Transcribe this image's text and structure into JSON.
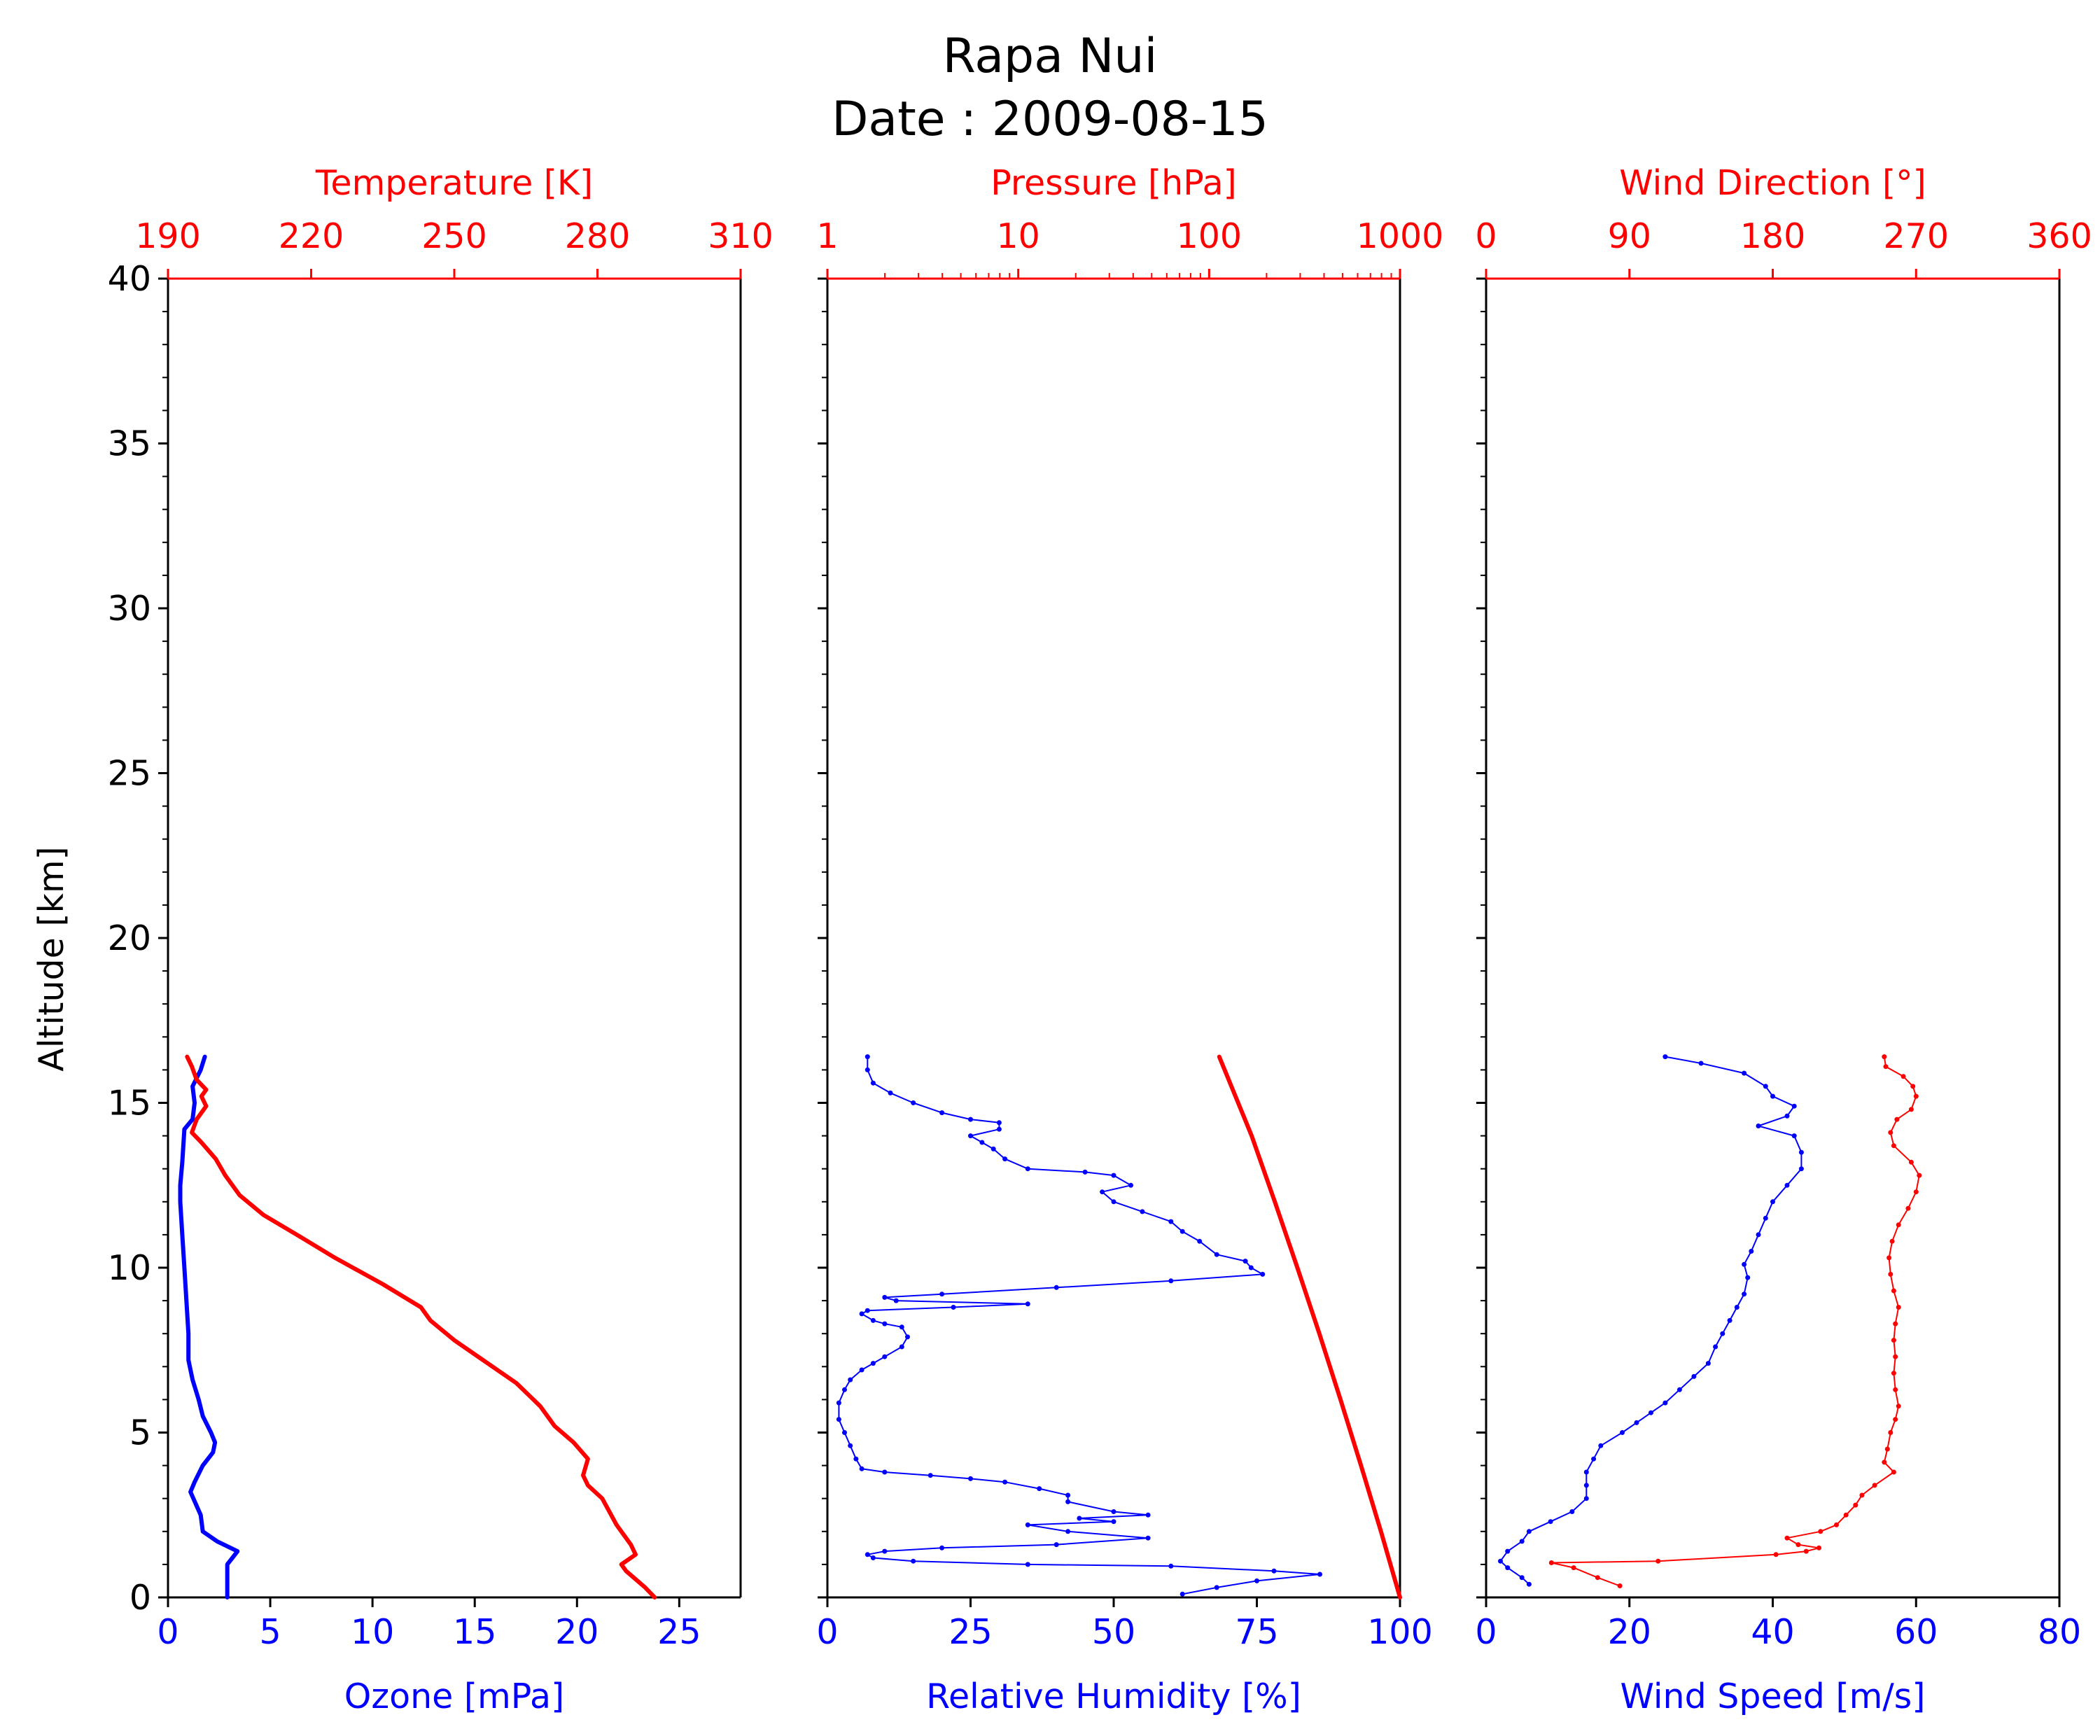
{
  "title_line1": "Rapa Nui",
  "title_line2": "Date : 2009-08-15",
  "colors": {
    "primary": "#0000ff",
    "secondary": "#ff0000",
    "axis": "#000000"
  },
  "y_axis": {
    "label": "Altitude [km]",
    "range": [
      0,
      40
    ],
    "ticks": [
      0,
      5,
      10,
      15,
      20,
      25,
      30,
      35,
      40
    ]
  },
  "chart_data": [
    {
      "type": "line",
      "panel": "Ozone / Temperature",
      "xlabel_bottom": "Ozone [mPa]",
      "xlabel_top": "Temperature [K]",
      "xlim_bottom": [
        0,
        28
      ],
      "xticks_bottom": [
        0,
        5,
        10,
        15,
        20,
        25
      ],
      "xlim_top": [
        190,
        310
      ],
      "xticks_top": [
        190,
        220,
        250,
        280,
        310
      ],
      "series": [
        {
          "axis": "bottom",
          "color": "#0000ff",
          "markers": false,
          "points": [
            [
              2.9,
              0
            ],
            [
              2.9,
              0.5
            ],
            [
              2.9,
              1.0
            ],
            [
              3.4,
              1.4
            ],
            [
              2.4,
              1.7
            ],
            [
              1.7,
              2.0
            ],
            [
              1.6,
              2.5
            ],
            [
              1.1,
              3.2
            ],
            [
              1.3,
              3.5
            ],
            [
              1.7,
              4.0
            ],
            [
              2.2,
              4.4
            ],
            [
              2.3,
              4.7
            ],
            [
              2.1,
              5.0
            ],
            [
              1.7,
              5.5
            ],
            [
              1.5,
              6.0
            ],
            [
              1.2,
              6.6
            ],
            [
              1.0,
              7.2
            ],
            [
              1.0,
              8.0
            ],
            [
              0.9,
              9.0
            ],
            [
              0.8,
              10.0
            ],
            [
              0.7,
              11.0
            ],
            [
              0.6,
              12.0
            ],
            [
              0.6,
              12.5
            ],
            [
              0.7,
              13.2
            ],
            [
              0.8,
              14.2
            ],
            [
              1.2,
              14.5
            ],
            [
              1.3,
              15.0
            ],
            [
              1.2,
              15.5
            ],
            [
              1.6,
              16.0
            ],
            [
              1.8,
              16.4
            ]
          ]
        },
        {
          "axis": "top",
          "color": "#ff0000",
          "markers": false,
          "points": [
            [
              292,
              0
            ],
            [
              290,
              0.3
            ],
            [
              286,
              0.8
            ],
            [
              285,
              1.0
            ],
            [
              288,
              1.3
            ],
            [
              287,
              1.6
            ],
            [
              284,
              2.2
            ],
            [
              281,
              3.0
            ],
            [
              278,
              3.4
            ],
            [
              277,
              3.7
            ],
            [
              278,
              4.2
            ],
            [
              275,
              4.7
            ],
            [
              271,
              5.2
            ],
            [
              268,
              5.8
            ],
            [
              263,
              6.5
            ],
            [
              256,
              7.2
            ],
            [
              250,
              7.8
            ],
            [
              245,
              8.4
            ],
            [
              243,
              8.8
            ],
            [
              235,
              9.5
            ],
            [
              225,
              10.3
            ],
            [
              217,
              11.0
            ],
            [
              210,
              11.6
            ],
            [
              205,
              12.2
            ],
            [
              202,
              12.8
            ],
            [
              200,
              13.3
            ],
            [
              197,
              13.8
            ],
            [
              195,
              14.1
            ],
            [
              196,
              14.5
            ],
            [
              198,
              14.9
            ],
            [
              197,
              15.2
            ],
            [
              198,
              15.4
            ],
            [
              196,
              15.7
            ],
            [
              195,
              16.1
            ],
            [
              194,
              16.4
            ]
          ]
        }
      ]
    },
    {
      "type": "line",
      "panel": "Relative Humidity / Pressure",
      "xlabel_bottom": "Relative Humidity [%]",
      "xlabel_top": "Pressure [hPa]",
      "xlim_bottom": [
        0,
        100
      ],
      "xticks_bottom": [
        0,
        25,
        50,
        75,
        100
      ],
      "xlim_top": [
        1,
        1000
      ],
      "xscale_top": "log",
      "xticks_top": [
        1,
        10,
        100,
        1000
      ],
      "series": [
        {
          "axis": "bottom",
          "color": "#0000ff",
          "markers": true,
          "points": [
            [
              62,
              0.1
            ],
            [
              68,
              0.3
            ],
            [
              75,
              0.5
            ],
            [
              86,
              0.7
            ],
            [
              78,
              0.8
            ],
            [
              60,
              0.95
            ],
            [
              35,
              1.0
            ],
            [
              15,
              1.1
            ],
            [
              8,
              1.2
            ],
            [
              7,
              1.3
            ],
            [
              10,
              1.4
            ],
            [
              20,
              1.5
            ],
            [
              40,
              1.6
            ],
            [
              56,
              1.8
            ],
            [
              42,
              2.0
            ],
            [
              35,
              2.2
            ],
            [
              50,
              2.3
            ],
            [
              44,
              2.4
            ],
            [
              56,
              2.5
            ],
            [
              50,
              2.6
            ],
            [
              42,
              2.9
            ],
            [
              42,
              3.1
            ],
            [
              37,
              3.3
            ],
            [
              31,
              3.5
            ],
            [
              25,
              3.6
            ],
            [
              18,
              3.7
            ],
            [
              10,
              3.8
            ],
            [
              6,
              3.9
            ],
            [
              5,
              4.2
            ],
            [
              4,
              4.6
            ],
            [
              3,
              5.0
            ],
            [
              2,
              5.4
            ],
            [
              2,
              5.9
            ],
            [
              3,
              6.3
            ],
            [
              4,
              6.6
            ],
            [
              6,
              6.9
            ],
            [
              8,
              7.1
            ],
            [
              10,
              7.3
            ],
            [
              13,
              7.6
            ],
            [
              14,
              7.9
            ],
            [
              13,
              8.2
            ],
            [
              10,
              8.3
            ],
            [
              8,
              8.4
            ],
            [
              6,
              8.6
            ],
            [
              7,
              8.7
            ],
            [
              22,
              8.8
            ],
            [
              35,
              8.9
            ],
            [
              12,
              9.0
            ],
            [
              10,
              9.1
            ],
            [
              20,
              9.2
            ],
            [
              40,
              9.4
            ],
            [
              60,
              9.6
            ],
            [
              76,
              9.8
            ],
            [
              74,
              10.0
            ],
            [
              73,
              10.2
            ],
            [
              68,
              10.4
            ],
            [
              65,
              10.8
            ],
            [
              62,
              11.1
            ],
            [
              60,
              11.4
            ],
            [
              55,
              11.7
            ],
            [
              50,
              12.0
            ],
            [
              48,
              12.3
            ],
            [
              53,
              12.5
            ],
            [
              50,
              12.8
            ],
            [
              45,
              12.9
            ],
            [
              35,
              13.0
            ],
            [
              31,
              13.3
            ],
            [
              29,
              13.6
            ],
            [
              27,
              13.8
            ],
            [
              25,
              14.0
            ],
            [
              30,
              14.2
            ],
            [
              30,
              14.4
            ],
            [
              25,
              14.5
            ],
            [
              20,
              14.7
            ],
            [
              15,
              15.0
            ],
            [
              11,
              15.3
            ],
            [
              8,
              15.6
            ],
            [
              7,
              16.0
            ],
            [
              7,
              16.4
            ]
          ]
        },
        {
          "axis": "top",
          "color": "#ff0000",
          "markers": false,
          "points": [
            [
              1000,
              0
            ],
            [
              795,
              2.0
            ],
            [
              625,
              4.0
            ],
            [
              488,
              6.0
            ],
            [
              378,
              8.0
            ],
            [
              290,
              10.0
            ],
            [
              221,
              12.0
            ],
            [
              167,
              14.0
            ],
            [
              113,
              16.4
            ]
          ]
        }
      ]
    },
    {
      "type": "line",
      "panel": "Wind Speed / Wind Direction",
      "xlabel_bottom": "Wind Speed [m/s]",
      "xlabel_top": "Wind Direction [°]",
      "xlim_bottom": [
        0,
        80
      ],
      "xticks_bottom": [
        0,
        20,
        40,
        60,
        80
      ],
      "xlim_top": [
        0,
        360
      ],
      "xticks_top": [
        0,
        90,
        180,
        270,
        360
      ],
      "series": [
        {
          "axis": "bottom",
          "color": "#0000ff",
          "markers": true,
          "points": [
            [
              6,
              0.4
            ],
            [
              5,
              0.6
            ],
            [
              3,
              0.9
            ],
            [
              2,
              1.1
            ],
            [
              3,
              1.4
            ],
            [
              5,
              1.7
            ],
            [
              6,
              2.0
            ],
            [
              9,
              2.3
            ],
            [
              12,
              2.6
            ],
            [
              14,
              3.0
            ],
            [
              14,
              3.4
            ],
            [
              14,
              3.8
            ],
            [
              15,
              4.2
            ],
            [
              16,
              4.6
            ],
            [
              19,
              5.0
            ],
            [
              21,
              5.3
            ],
            [
              23,
              5.6
            ],
            [
              25,
              5.9
            ],
            [
              27,
              6.3
            ],
            [
              29,
              6.7
            ],
            [
              31,
              7.1
            ],
            [
              32,
              7.6
            ],
            [
              33,
              8.0
            ],
            [
              34,
              8.4
            ],
            [
              35,
              8.8
            ],
            [
              36,
              9.2
            ],
            [
              36.5,
              9.7
            ],
            [
              36,
              10.1
            ],
            [
              37,
              10.5
            ],
            [
              38,
              11.0
            ],
            [
              39,
              11.5
            ],
            [
              40,
              12.0
            ],
            [
              42,
              12.5
            ],
            [
              44,
              13.0
            ],
            [
              44,
              13.5
            ],
            [
              43,
              14.0
            ],
            [
              38,
              14.3
            ],
            [
              42,
              14.6
            ],
            [
              43,
              14.9
            ],
            [
              40,
              15.2
            ],
            [
              39,
              15.5
            ],
            [
              36,
              15.9
            ],
            [
              30,
              16.2
            ],
            [
              25,
              16.4
            ]
          ]
        },
        {
          "axis": "top",
          "color": "#ff0000",
          "markers": true,
          "points": [
            [
              84,
              0.35
            ],
            [
              70,
              0.6
            ],
            [
              55,
              0.9
            ],
            [
              41,
              1.05
            ],
            [
              108,
              1.1
            ],
            [
              182,
              1.3
            ],
            [
              201,
              1.4
            ],
            [
              209,
              1.5
            ],
            [
              196,
              1.6
            ],
            [
              189,
              1.8
            ],
            [
              210,
              2.0
            ],
            [
              220,
              2.2
            ],
            [
              226,
              2.5
            ],
            [
              232,
              2.8
            ],
            [
              236,
              3.1
            ],
            [
              244,
              3.4
            ],
            [
              256,
              3.8
            ],
            [
              250,
              4.1
            ],
            [
              252,
              4.5
            ],
            [
              254,
              5.0
            ],
            [
              257,
              5.4
            ],
            [
              259,
              5.8
            ],
            [
              257,
              6.3
            ],
            [
              256,
              6.8
            ],
            [
              257,
              7.3
            ],
            [
              256,
              7.8
            ],
            [
              257,
              8.3
            ],
            [
              259,
              8.8
            ],
            [
              256,
              9.3
            ],
            [
              254,
              9.8
            ],
            [
              253,
              10.3
            ],
            [
              255,
              10.8
            ],
            [
              259,
              11.3
            ],
            [
              265,
              11.8
            ],
            [
              270,
              12.3
            ],
            [
              272,
              12.8
            ],
            [
              267,
              13.2
            ],
            [
              256,
              13.7
            ],
            [
              254,
              14.1
            ],
            [
              258,
              14.5
            ],
            [
              267,
              14.8
            ],
            [
              270,
              15.2
            ],
            [
              268,
              15.5
            ],
            [
              262,
              15.8
            ],
            [
              251,
              16.1
            ],
            [
              250,
              16.4
            ]
          ]
        }
      ]
    }
  ]
}
